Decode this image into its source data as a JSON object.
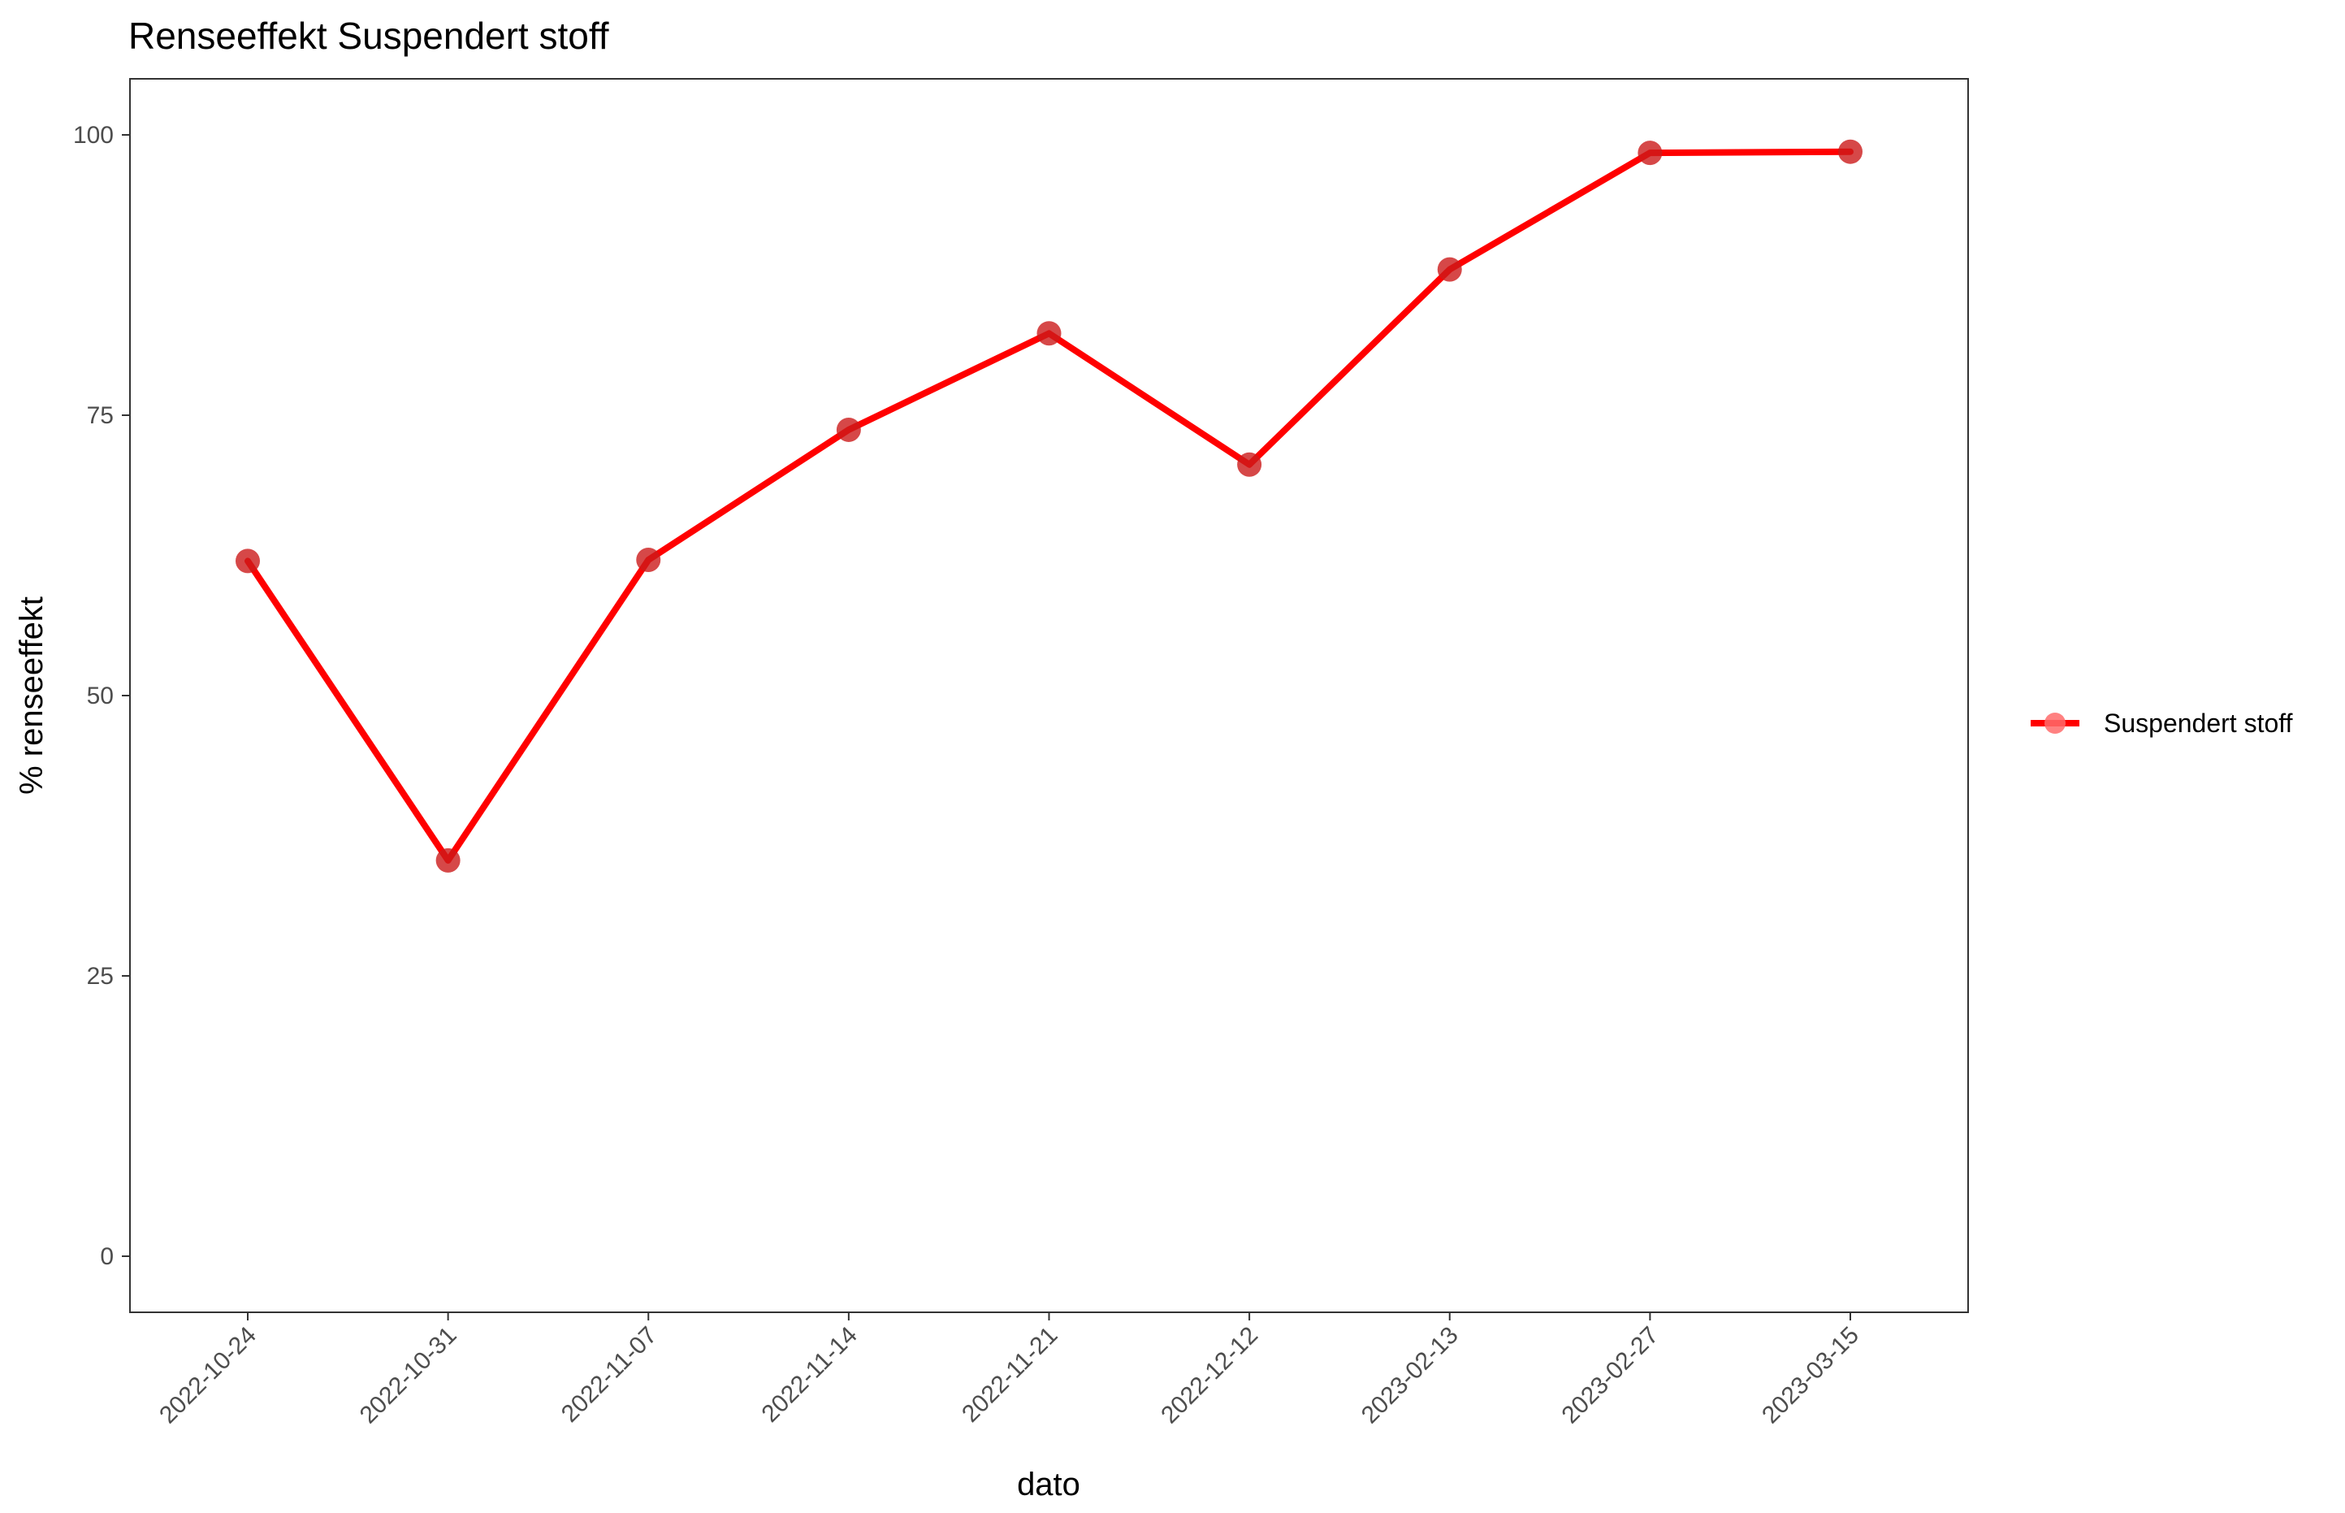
{
  "chart_data": {
    "type": "line",
    "title": "Renseeffekt Suspendert stoff",
    "xlabel": "dato",
    "ylabel": "% renseeffekt",
    "categories": [
      "2022-10-24",
      "2022-10-31",
      "2022-11-07",
      "2022-11-14",
      "2022-11-21",
      "2022-12-12",
      "2023-02-13",
      "2023-02-27",
      "2023-03-15"
    ],
    "series": [
      {
        "name": "Suspendert stoff",
        "values": [
          62.0,
          35.3,
          62.1,
          73.7,
          82.3,
          70.6,
          88.0,
          98.4,
          98.5
        ],
        "line_color": "#ff0000",
        "point_color": "#cc1a1a"
      }
    ],
    "ylim": [
      -5,
      105
    ],
    "yticks": [
      0,
      25,
      50,
      75,
      100
    ],
    "grid": false,
    "legend_position": "right"
  }
}
